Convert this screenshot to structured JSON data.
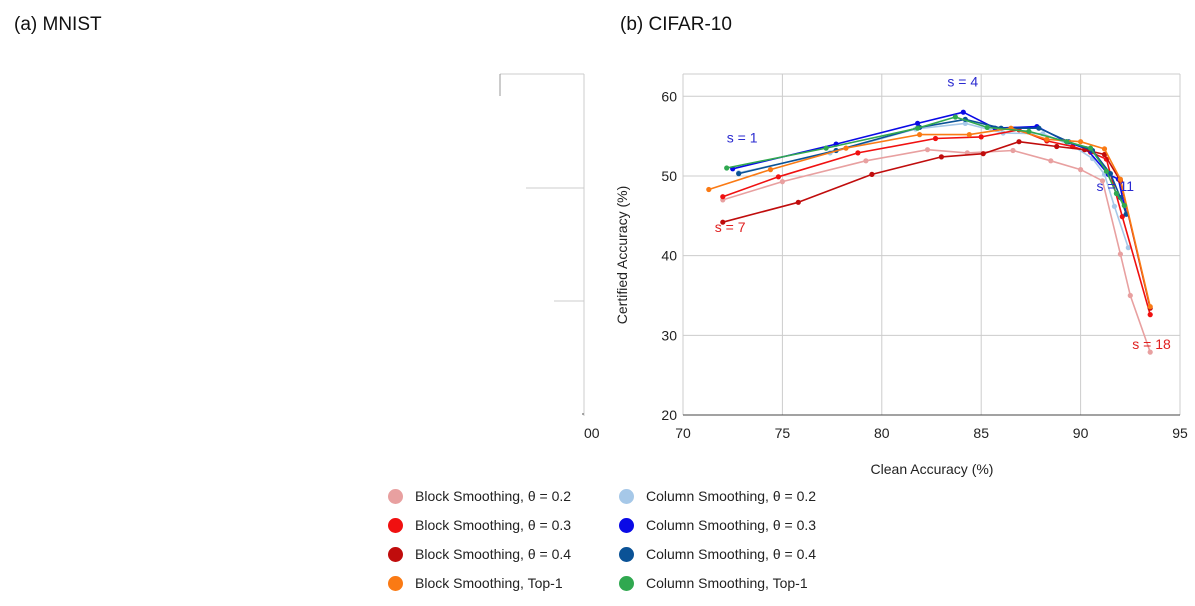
{
  "panels": {
    "a_title": "(a) MNIST",
    "b_title": "(b) CIFAR-10"
  },
  "left_axis_fragment": {
    "tick_label": "00"
  },
  "legend": {
    "items": [
      {
        "label": "Block Smoothing, θ = 0.2",
        "color": "#e8a0a0"
      },
      {
        "label": "Column Smoothing, θ = 0.2",
        "color": "#a6c8e8"
      },
      {
        "label": "Block Smoothing, θ = 0.3",
        "color": "#f01010"
      },
      {
        "label": "Column Smoothing, θ = 0.3",
        "color": "#0a0ae6"
      },
      {
        "label": "Block Smoothing, θ = 0.4",
        "color": "#c00c0c"
      },
      {
        "label": "Column Smoothing, θ = 0.4",
        "color": "#0a5296"
      },
      {
        "label": "Block Smoothing, Top-1",
        "color": "#fa7a14"
      },
      {
        "label": "Column Smoothing, Top-1",
        "color": "#30a850"
      }
    ]
  },
  "chart_data": {
    "type": "line",
    "xlabel": "Clean Accuracy (%)",
    "ylabel": "Certified Accuracy (%)",
    "xlim": [
      70,
      95
    ],
    "ylim": [
      20,
      63
    ],
    "xticks": [
      70,
      75,
      80,
      85,
      90,
      95
    ],
    "yticks": [
      20,
      30,
      40,
      50,
      60
    ],
    "grid": true,
    "legend_position": "bottom",
    "annotations": [
      {
        "text": "s = 1",
        "x": 72.2,
        "y": 54.2,
        "color": "#2a2ad0"
      },
      {
        "text": "s = 4",
        "x": 83.3,
        "y": 61.2,
        "color": "#2a2ad0"
      },
      {
        "text": "s = 11",
        "x": 90.8,
        "y": 48.1,
        "color": "#2a2ad0"
      },
      {
        "text": "s = 7",
        "x": 71.6,
        "y": 43.0,
        "color": "#e02020"
      },
      {
        "text": "s = 18",
        "x": 92.6,
        "y": 28.3,
        "color": "#e02020"
      }
    ],
    "series": [
      {
        "name": "Block Smoothing, θ = 0.2",
        "color": "#e8a0a0",
        "x": [
          72.0,
          75.0,
          79.2,
          82.3,
          84.3,
          86.6,
          88.5,
          90.0,
          91.1,
          92.0,
          92.5,
          93.5
        ],
        "y": [
          47.0,
          49.3,
          51.9,
          53.3,
          52.9,
          53.2,
          51.9,
          50.8,
          49.4,
          40.2,
          35.0,
          27.9
        ]
      },
      {
        "name": "Column Smoothing, θ = 0.2",
        "color": "#a6c8e8",
        "x": [
          72.8,
          77.4,
          81.7,
          84.2,
          86.1,
          88.1,
          89.6,
          90.6,
          91.2,
          91.7,
          92.4
        ],
        "y": [
          50.4,
          52.9,
          55.9,
          56.6,
          55.4,
          55.3,
          53.8,
          52.2,
          50.2,
          46.2,
          41.0
        ]
      },
      {
        "name": "Block Smoothing, θ = 0.3",
        "color": "#f01010",
        "x": [
          72.0,
          74.8,
          78.8,
          82.7,
          85.0,
          86.9,
          88.3,
          89.6,
          90.5,
          91.3,
          92.1,
          93.5
        ],
        "y": [
          47.4,
          49.9,
          52.9,
          54.7,
          54.9,
          55.8,
          54.4,
          53.7,
          53.0,
          52.1,
          44.9,
          32.6
        ]
      },
      {
        "name": "Column Smoothing, θ = 0.3",
        "color": "#0a0ae6",
        "x": [
          72.5,
          77.7,
          81.8,
          84.1,
          85.7,
          87.8,
          89.3,
          90.3,
          91.4,
          91.9,
          92.3
        ],
        "y": [
          50.9,
          54.0,
          56.6,
          58.0,
          56.0,
          56.2,
          54.3,
          53.4,
          50.2,
          49.6,
          45.2
        ]
      },
      {
        "name": "Block Smoothing, θ = 0.4",
        "color": "#c00c0c",
        "x": [
          72.0,
          75.8,
          79.5,
          83.0,
          85.1,
          86.9,
          88.8,
          90.2,
          91.2,
          92.0,
          93.5
        ],
        "y": [
          44.2,
          46.7,
          50.2,
          52.4,
          52.8,
          54.3,
          53.7,
          53.3,
          52.7,
          49.4,
          33.4
        ]
      },
      {
        "name": "Column Smoothing, θ = 0.4",
        "color": "#0a5296",
        "x": [
          72.8,
          77.7,
          81.9,
          84.2,
          86.0,
          87.9,
          89.4,
          90.6,
          91.5,
          92.0,
          92.3
        ],
        "y": [
          50.3,
          53.2,
          56.1,
          57.1,
          56.0,
          56.0,
          54.3,
          53.2,
          50.3,
          47.3,
          45.2
        ]
      },
      {
        "name": "Block Smoothing, Top-1",
        "color": "#fa7a14",
        "x": [
          71.3,
          74.4,
          78.2,
          81.9,
          84.4,
          86.5,
          88.3,
          90.0,
          91.2,
          92.0,
          93.5
        ],
        "y": [
          48.3,
          50.8,
          53.5,
          55.2,
          55.2,
          56.0,
          54.6,
          54.3,
          53.4,
          49.6,
          33.6
        ]
      },
      {
        "name": "Column Smoothing, Top-1",
        "color": "#30a850",
        "x": [
          72.2,
          77.2,
          81.8,
          83.7,
          85.3,
          87.4,
          89.3,
          90.5,
          91.3,
          91.8,
          92.2
        ],
        "y": [
          51.0,
          53.5,
          56.0,
          57.4,
          56.1,
          55.6,
          54.3,
          53.5,
          50.6,
          47.8,
          46.3
        ]
      }
    ]
  }
}
